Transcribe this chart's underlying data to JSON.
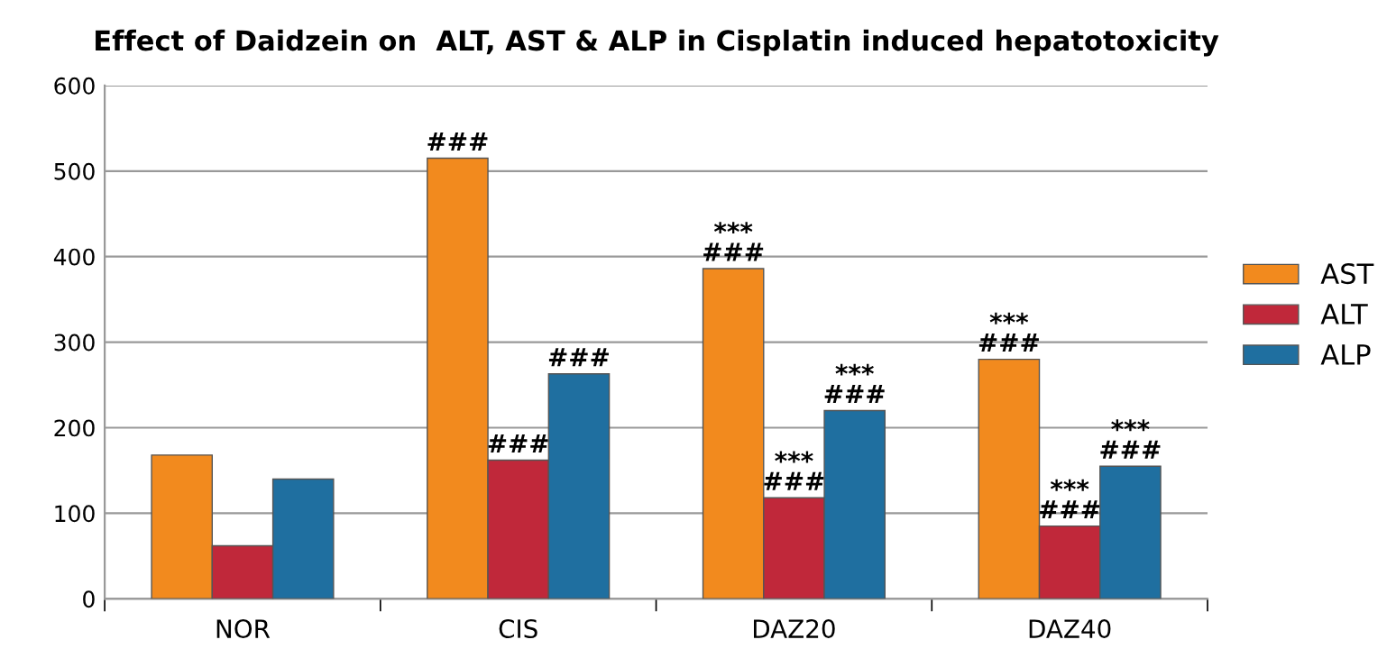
{
  "chart_data": {
    "type": "bar",
    "title": "Effect of Daidzein on  ALT, AST & ALP in Cisplatin induced hepatotoxicity",
    "categories": [
      "NOR",
      "CIS",
      "DAZ20",
      "DAZ40"
    ],
    "series": [
      {
        "name": "AST",
        "color": "#f28a1e",
        "values": [
          168,
          515,
          386,
          280
        ],
        "value_labels": [
          null,
          "###",
          "***\n###",
          "***\n###"
        ]
      },
      {
        "name": "ALT",
        "color": "#c0283a",
        "values": [
          62,
          162,
          118,
          85
        ],
        "value_labels": [
          null,
          "###",
          "***\n###",
          "***\n###"
        ]
      },
      {
        "name": "ALP",
        "color": "#1f6fa0",
        "values": [
          140,
          263,
          220,
          155
        ],
        "value_labels": [
          null,
          "###",
          "***\n###",
          "***\n###"
        ]
      }
    ],
    "ylim": [
      0,
      600
    ],
    "yticks": [
      0,
      100,
      200,
      300,
      400,
      500,
      600
    ],
    "grid": "y",
    "legend": "right"
  }
}
